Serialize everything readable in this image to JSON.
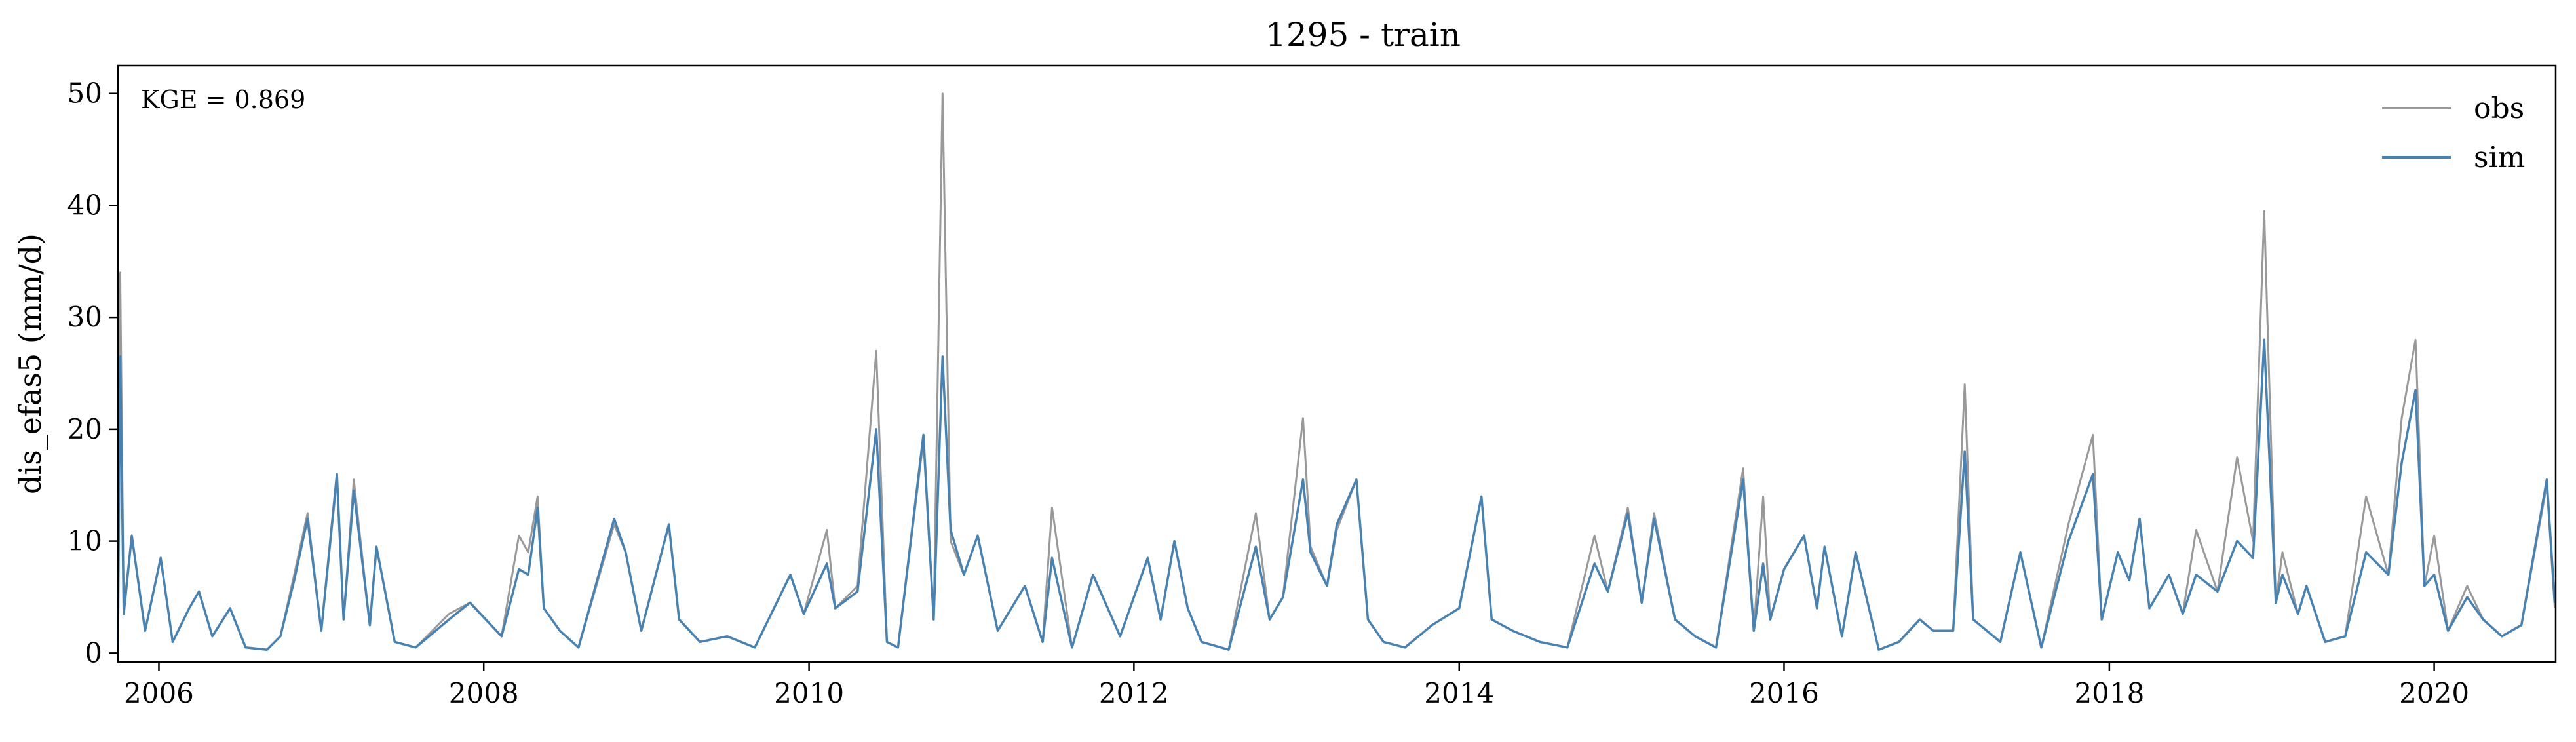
{
  "chart_data": {
    "type": "line",
    "title": "1295 - train",
    "xlabel": "",
    "ylabel": "dis_efas5 (mm/d)",
    "annotation": "KGE = 0.869",
    "xlim": [
      "2005-10-01",
      "2020-09-30"
    ],
    "ylim": [
      -0.8,
      52.5
    ],
    "x_ticks": [
      "2006",
      "2008",
      "2010",
      "2012",
      "2014",
      "2016",
      "2018",
      "2020"
    ],
    "y_ticks": [
      "0",
      "10",
      "20",
      "30",
      "40",
      "50"
    ],
    "y_tick_values": [
      0,
      10,
      20,
      30,
      40,
      50
    ],
    "grid": false,
    "legend_position": "top-right",
    "series": [
      {
        "name": "obs",
        "color": "#999999",
        "x": [
          "2005-10-01",
          "2005-10-06",
          "2005-10-14",
          "2005-11-01",
          "2005-12-01",
          "2006-01-05",
          "2006-02-01",
          "2006-03-10",
          "2006-04-01",
          "2006-05-01",
          "2006-06-10",
          "2006-07-15",
          "2006-09-01",
          "2006-10-01",
          "2006-11-01",
          "2006-12-01",
          "2007-01-01",
          "2007-02-05",
          "2007-02-20",
          "2007-03-15",
          "2007-04-20",
          "2007-05-05",
          "2007-06-15",
          "2007-08-01",
          "2007-10-15",
          "2007-12-01",
          "2008-02-10",
          "2008-03-20",
          "2008-04-10",
          "2008-05-01",
          "2008-05-15",
          "2008-06-20",
          "2008-08-01",
          "2008-10-20",
          "2008-11-15",
          "2008-12-20",
          "2009-02-20",
          "2009-03-15",
          "2009-05-01",
          "2009-07-01",
          "2009-09-01",
          "2009-11-20",
          "2009-12-20",
          "2010-02-10",
          "2010-03-01",
          "2010-04-20",
          "2010-06-01",
          "2010-06-25",
          "2010-07-20",
          "2010-09-15",
          "2010-10-08",
          "2010-10-28",
          "2010-11-15",
          "2010-12-15",
          "2011-01-15",
          "2011-03-01",
          "2011-05-01",
          "2011-06-10",
          "2011-07-01",
          "2011-08-15",
          "2011-10-01",
          "2011-12-01",
          "2012-02-01",
          "2012-03-01",
          "2012-04-01",
          "2012-05-01",
          "2012-06-01",
          "2012-08-01",
          "2012-10-01",
          "2012-11-01",
          "2012-12-01",
          "2013-01-15",
          "2013-02-01",
          "2013-03-10",
          "2013-04-01",
          "2013-05-15",
          "2013-06-10",
          "2013-07-15",
          "2013-09-01",
          "2013-11-01",
          "2014-01-01",
          "2014-02-20",
          "2014-03-15",
          "2014-05-01",
          "2014-07-01",
          "2014-09-01",
          "2014-11-01",
          "2014-12-01",
          "2015-01-15",
          "2015-02-15",
          "2015-03-15",
          "2015-05-01",
          "2015-06-15",
          "2015-08-01",
          "2015-10-01",
          "2015-10-25",
          "2015-11-15",
          "2015-12-01",
          "2016-01-01",
          "2016-02-15",
          "2016-03-15",
          "2016-04-01",
          "2016-05-10",
          "2016-06-10",
          "2016-08-01",
          "2016-09-15",
          "2016-11-01",
          "2016-12-01",
          "2017-01-15",
          "2017-02-10",
          "2017-03-01",
          "2017-05-01",
          "2017-06-15",
          "2017-08-01",
          "2017-10-01",
          "2017-11-25",
          "2017-12-15",
          "2018-01-20",
          "2018-02-15",
          "2018-03-10",
          "2018-04-01",
          "2018-05-15",
          "2018-06-15",
          "2018-07-15",
          "2018-09-01",
          "2018-10-15",
          "2018-11-20",
          "2018-12-15",
          "2019-01-10",
          "2019-01-25",
          "2019-03-01",
          "2019-03-20",
          "2019-05-01",
          "2019-06-15",
          "2019-08-01",
          "2019-09-20",
          "2019-10-20",
          "2019-11-20",
          "2019-12-10",
          "2020-01-01",
          "2020-02-01",
          "2020-03-15",
          "2020-04-20",
          "2020-06-01",
          "2020-07-15",
          "2020-09-10",
          "2020-09-28"
        ],
        "y": [
          1.5,
          34.0,
          4.0,
          10.5,
          2.0,
          8.5,
          1.0,
          4.0,
          5.5,
          1.5,
          4.0,
          0.5,
          0.3,
          1.5,
          7.0,
          12.5,
          2.0,
          15.5,
          3.0,
          15.5,
          2.5,
          9.5,
          1.0,
          0.5,
          3.5,
          4.5,
          1.5,
          10.5,
          9.0,
          14.0,
          4.0,
          2.0,
          0.5,
          11.5,
          9.0,
          2.0,
          11.5,
          3.0,
          1.0,
          1.5,
          0.5,
          7.0,
          3.5,
          11.0,
          4.0,
          6.0,
          27.0,
          1.0,
          0.5,
          19.0,
          3.0,
          50.0,
          10.0,
          7.0,
          10.5,
          2.0,
          6.0,
          1.0,
          13.0,
          0.5,
          7.0,
          1.5,
          8.5,
          3.0,
          10.0,
          4.0,
          1.0,
          0.3,
          12.5,
          3.0,
          5.0,
          21.0,
          9.5,
          6.0,
          11.0,
          15.5,
          3.0,
          1.0,
          0.5,
          2.5,
          4.0,
          14.0,
          3.0,
          2.0,
          1.0,
          0.5,
          10.5,
          5.5,
          13.0,
          4.5,
          12.5,
          3.0,
          1.5,
          0.5,
          16.5,
          2.0,
          14.0,
          3.0,
          7.5,
          10.5,
          4.0,
          9.5,
          1.5,
          9.0,
          0.3,
          1.0,
          3.0,
          2.0,
          2.0,
          24.0,
          3.0,
          1.0,
          9.0,
          0.5,
          11.5,
          19.5,
          3.0,
          9.0,
          6.5,
          12.0,
          4.0,
          7.0,
          3.5,
          11.0,
          5.5,
          17.5,
          10.0,
          39.5,
          4.5,
          9.0,
          3.5,
          6.0,
          1.0,
          1.5,
          14.0,
          7.0,
          21.0,
          28.0,
          6.0,
          10.5,
          2.0,
          6.0,
          3.0,
          1.5,
          2.5,
          15.0,
          4.0
        ]
      },
      {
        "name": "sim",
        "color": "#4682b4",
        "x": [
          "2005-10-01",
          "2005-10-06",
          "2005-10-14",
          "2005-11-01",
          "2005-12-01",
          "2006-01-05",
          "2006-02-01",
          "2006-03-10",
          "2006-04-01",
          "2006-05-01",
          "2006-06-10",
          "2006-07-15",
          "2006-09-01",
          "2006-10-01",
          "2006-11-01",
          "2006-12-01",
          "2007-01-01",
          "2007-02-05",
          "2007-02-20",
          "2007-03-15",
          "2007-04-20",
          "2007-05-05",
          "2007-06-15",
          "2007-08-01",
          "2007-10-15",
          "2007-12-01",
          "2008-02-10",
          "2008-03-20",
          "2008-04-10",
          "2008-05-01",
          "2008-05-15",
          "2008-06-20",
          "2008-08-01",
          "2008-10-20",
          "2008-11-15",
          "2008-12-20",
          "2009-02-20",
          "2009-03-15",
          "2009-05-01",
          "2009-07-01",
          "2009-09-01",
          "2009-11-20",
          "2009-12-20",
          "2010-02-10",
          "2010-03-01",
          "2010-04-20",
          "2010-06-01",
          "2010-06-25",
          "2010-07-20",
          "2010-09-15",
          "2010-10-08",
          "2010-10-28",
          "2010-11-15",
          "2010-12-15",
          "2011-01-15",
          "2011-03-01",
          "2011-05-01",
          "2011-06-10",
          "2011-07-01",
          "2011-08-15",
          "2011-10-01",
          "2011-12-01",
          "2012-02-01",
          "2012-03-01",
          "2012-04-01",
          "2012-05-01",
          "2012-06-01",
          "2012-08-01",
          "2012-10-01",
          "2012-11-01",
          "2012-12-01",
          "2013-01-15",
          "2013-02-01",
          "2013-03-10",
          "2013-04-01",
          "2013-05-15",
          "2013-06-10",
          "2013-07-15",
          "2013-09-01",
          "2013-11-01",
          "2014-01-01",
          "2014-02-20",
          "2014-03-15",
          "2014-05-01",
          "2014-07-01",
          "2014-09-01",
          "2014-11-01",
          "2014-12-01",
          "2015-01-15",
          "2015-02-15",
          "2015-03-15",
          "2015-05-01",
          "2015-06-15",
          "2015-08-01",
          "2015-10-01",
          "2015-10-25",
          "2015-11-15",
          "2015-12-01",
          "2016-01-01",
          "2016-02-15",
          "2016-03-15",
          "2016-04-01",
          "2016-05-10",
          "2016-06-10",
          "2016-08-01",
          "2016-09-15",
          "2016-11-01",
          "2016-12-01",
          "2017-01-15",
          "2017-02-10",
          "2017-03-01",
          "2017-05-01",
          "2017-06-15",
          "2017-08-01",
          "2017-10-01",
          "2017-11-25",
          "2017-12-15",
          "2018-01-20",
          "2018-02-15",
          "2018-03-10",
          "2018-04-01",
          "2018-05-15",
          "2018-06-15",
          "2018-07-15",
          "2018-09-01",
          "2018-10-15",
          "2018-11-20",
          "2018-12-15",
          "2019-01-10",
          "2019-01-25",
          "2019-03-01",
          "2019-03-20",
          "2019-05-01",
          "2019-06-15",
          "2019-08-01",
          "2019-09-20",
          "2019-10-20",
          "2019-11-20",
          "2019-12-10",
          "2020-01-01",
          "2020-02-01",
          "2020-03-15",
          "2020-04-20",
          "2020-06-01",
          "2020-07-15",
          "2020-09-10",
          "2020-09-28"
        ],
        "y": [
          1.0,
          26.5,
          3.5,
          10.5,
          2.0,
          8.5,
          1.0,
          4.0,
          5.5,
          1.5,
          4.0,
          0.5,
          0.3,
          1.5,
          6.5,
          12.0,
          2.0,
          16.0,
          3.0,
          14.5,
          2.5,
          9.5,
          1.0,
          0.5,
          3.0,
          4.5,
          1.5,
          7.5,
          7.0,
          13.0,
          4.0,
          2.0,
          0.5,
          12.0,
          9.0,
          2.0,
          11.5,
          3.0,
          1.0,
          1.5,
          0.5,
          7.0,
          3.5,
          8.0,
          4.0,
          5.5,
          20.0,
          1.0,
          0.5,
          19.5,
          3.0,
          26.5,
          11.0,
          7.0,
          10.5,
          2.0,
          6.0,
          1.0,
          8.5,
          0.5,
          7.0,
          1.5,
          8.5,
          3.0,
          10.0,
          4.0,
          1.0,
          0.3,
          9.5,
          3.0,
          5.0,
          15.5,
          9.0,
          6.0,
          11.5,
          15.5,
          3.0,
          1.0,
          0.5,
          2.5,
          4.0,
          14.0,
          3.0,
          2.0,
          1.0,
          0.5,
          8.0,
          5.5,
          12.5,
          4.5,
          12.0,
          3.0,
          1.5,
          0.5,
          15.5,
          2.0,
          8.0,
          3.0,
          7.5,
          10.5,
          4.0,
          9.5,
          1.5,
          9.0,
          0.3,
          1.0,
          3.0,
          2.0,
          2.0,
          18.0,
          3.0,
          1.0,
          9.0,
          0.5,
          10.0,
          16.0,
          3.0,
          9.0,
          6.5,
          12.0,
          4.0,
          7.0,
          3.5,
          7.0,
          5.5,
          10.0,
          8.5,
          28.0,
          4.5,
          7.0,
          3.5,
          6.0,
          1.0,
          1.5,
          9.0,
          7.0,
          17.0,
          23.5,
          6.0,
          7.0,
          2.0,
          5.0,
          3.0,
          1.5,
          2.5,
          15.5,
          4.5
        ]
      }
    ]
  }
}
